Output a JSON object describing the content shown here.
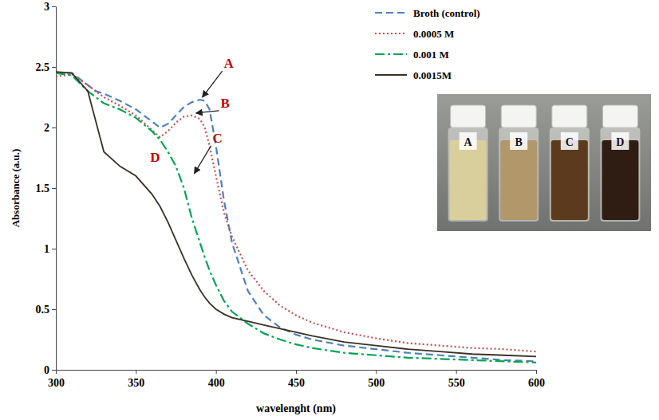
{
  "chart_data": {
    "type": "line",
    "x_label": "wavelenght (nm)",
    "y_label": "Absorbance (a.u.)",
    "x": [
      300,
      310,
      320,
      325,
      330,
      340,
      350,
      360,
      365,
      370,
      375,
      380,
      385,
      390,
      393,
      396,
      400,
      405,
      410,
      420,
      430,
      440,
      450,
      460,
      480,
      500,
      520,
      540,
      560,
      580,
      600
    ],
    "series": [
      {
        "name": "Broth (control)",
        "color": "#4f81bd",
        "line_style": "dashed",
        "values": [
          2.45,
          2.45,
          2.35,
          2.3,
          2.28,
          2.22,
          2.15,
          2.05,
          2.0,
          2.03,
          2.1,
          2.17,
          2.21,
          2.23,
          2.22,
          2.15,
          1.85,
          1.4,
          1.05,
          0.65,
          0.45,
          0.35,
          0.29,
          0.25,
          0.2,
          0.17,
          0.14,
          0.12,
          0.1,
          0.08,
          0.07
        ]
      },
      {
        "name": "0.0005 M",
        "color": "#c0504d",
        "line_style": "dotted",
        "values": [
          2.42,
          2.44,
          2.35,
          2.3,
          2.25,
          2.18,
          2.1,
          1.98,
          1.92,
          1.97,
          2.04,
          2.09,
          2.1,
          2.07,
          2.0,
          1.85,
          1.6,
          1.3,
          1.1,
          0.82,
          0.65,
          0.53,
          0.45,
          0.39,
          0.31,
          0.26,
          0.22,
          0.2,
          0.18,
          0.17,
          0.15
        ]
      },
      {
        "name": "0.001 M",
        "color": "#00a651",
        "line_style": "dashdot",
        "values": [
          2.45,
          2.43,
          2.3,
          2.25,
          2.2,
          2.15,
          2.08,
          1.97,
          1.9,
          1.8,
          1.68,
          1.5,
          1.25,
          1.05,
          0.93,
          0.82,
          0.7,
          0.57,
          0.48,
          0.38,
          0.3,
          0.25,
          0.21,
          0.18,
          0.14,
          0.12,
          0.1,
          0.09,
          0.08,
          0.07,
          0.06
        ]
      },
      {
        "name": "0.0015M",
        "color": "#3b3024",
        "line_style": "solid",
        "values": [
          2.46,
          2.45,
          2.3,
          2.05,
          1.8,
          1.68,
          1.6,
          1.45,
          1.35,
          1.22,
          1.07,
          0.92,
          0.78,
          0.66,
          0.6,
          0.55,
          0.5,
          0.46,
          0.43,
          0.4,
          0.37,
          0.34,
          0.31,
          0.28,
          0.23,
          0.2,
          0.17,
          0.15,
          0.13,
          0.12,
          0.11
        ]
      }
    ],
    "xlim": [
      300,
      600
    ],
    "xticks": [
      300,
      350,
      400,
      450,
      500,
      550,
      600
    ],
    "ylim": [
      0,
      3
    ],
    "yticks": [
      0,
      0.5,
      1,
      1.5,
      2,
      2.5,
      3
    ],
    "grid": false,
    "legend": "upper right",
    "annotations": [
      {
        "text": "A",
        "x": 390,
        "y": 2.23
      },
      {
        "text": "B",
        "x": 386,
        "y": 2.1
      },
      {
        "text": "C",
        "x": 385,
        "y": 1.6
      },
      {
        "text": "D",
        "x": 352,
        "y": 1.6
      }
    ],
    "inset_labels": [
      "A",
      "B",
      "C",
      "D"
    ]
  }
}
